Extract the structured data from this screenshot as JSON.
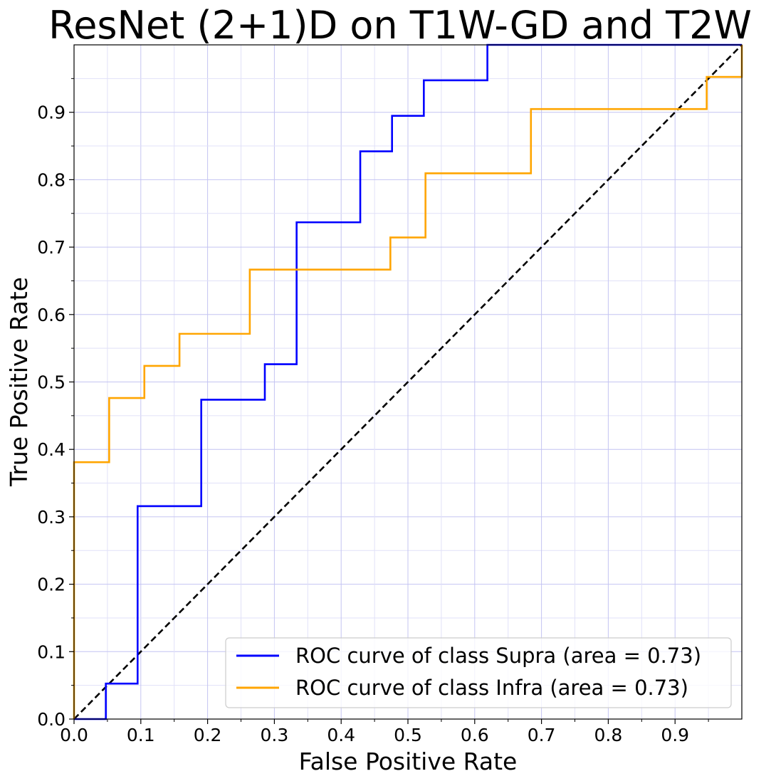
{
  "chart_data": {
    "type": "line",
    "title": "ResNet (2+1)D on T1W-GD and T2W",
    "xlabel": "False Positive Rate",
    "ylabel": "True Positive Rate",
    "xlim": [
      0.0,
      1.0
    ],
    "ylim": [
      0.0,
      1.0
    ],
    "xticks": [
      "0.0",
      "0.1",
      "0.2",
      "0.3",
      "0.4",
      "0.5",
      "0.6",
      "0.7",
      "0.8",
      "0.9"
    ],
    "yticks": [
      "0.0",
      "0.1",
      "0.2",
      "0.3",
      "0.4",
      "0.5",
      "0.6",
      "0.7",
      "0.8",
      "0.9"
    ],
    "grid": true,
    "minor_grid": true,
    "legend_position": "lower-right",
    "series": [
      {
        "name": "ROC curve of class Supra (area = 0.73)",
        "color": "#0000ff",
        "x": [
          0.0,
          0.0476,
          0.0476,
          0.0952,
          0.0952,
          0.1905,
          0.1905,
          0.2857,
          0.2857,
          0.3333,
          0.3333,
          0.4286,
          0.4286,
          0.4762,
          0.4762,
          0.5238,
          0.5238,
          0.619,
          0.619,
          1.0
        ],
        "y": [
          0.0,
          0.0,
          0.0526,
          0.0526,
          0.3158,
          0.3158,
          0.4737,
          0.4737,
          0.5263,
          0.5263,
          0.7368,
          0.7368,
          0.8421,
          0.8421,
          0.8947,
          0.8947,
          0.9474,
          0.9474,
          1.0,
          1.0
        ]
      },
      {
        "name": "ROC curve of class Infra (area = 0.73)",
        "color": "#ffa500",
        "x": [
          0.0,
          0.0,
          0.0526,
          0.0526,
          0.1053,
          0.1053,
          0.1579,
          0.1579,
          0.2632,
          0.2632,
          0.4737,
          0.4737,
          0.5263,
          0.5263,
          0.6842,
          0.6842,
          0.9474,
          0.9474,
          1.0,
          1.0
        ],
        "y": [
          0.0,
          0.381,
          0.381,
          0.4762,
          0.4762,
          0.5238,
          0.5238,
          0.5714,
          0.5714,
          0.6667,
          0.6667,
          0.7143,
          0.7143,
          0.8095,
          0.8095,
          0.9048,
          0.9048,
          0.9524,
          0.9524,
          1.0
        ]
      }
    ],
    "reference_line": {
      "x": [
        0.0,
        1.0
      ],
      "y": [
        0.0,
        1.0
      ],
      "color": "#000000",
      "style": "dashed"
    }
  }
}
